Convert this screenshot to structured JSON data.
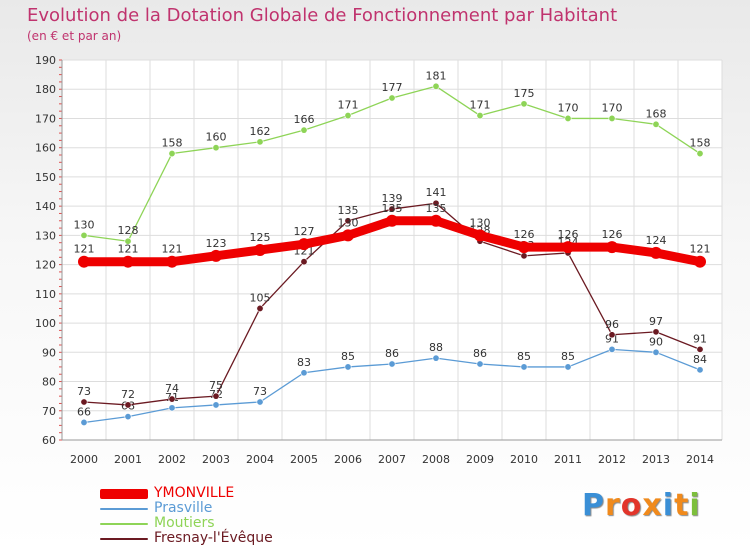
{
  "title": "Evolution de la Dotation Globale de Fonctionnement par Habitant",
  "subtitle": "(en € et par an)",
  "logo_text": "Proxiti",
  "chart_data": {
    "type": "line",
    "x": [
      "2000",
      "2001",
      "2002",
      "2003",
      "2004",
      "2005",
      "2006",
      "2007",
      "2008",
      "2009",
      "2010",
      "2011",
      "2012",
      "2013",
      "2014"
    ],
    "ylim": [
      60,
      190
    ],
    "yticks": [
      60,
      70,
      80,
      90,
      100,
      110,
      120,
      130,
      140,
      150,
      160,
      170,
      180,
      190
    ],
    "grid": true,
    "legend_position": "bottom-left",
    "series": [
      {
        "name": "YMONVILLE",
        "color": "#ee0000",
        "values": [
          121,
          121,
          121,
          123,
          125,
          127,
          130,
          135,
          135,
          130,
          126,
          126,
          126,
          124,
          121
        ]
      },
      {
        "name": "Prasville",
        "color": "#5b9bd5",
        "values": [
          66,
          68,
          71,
          72,
          73,
          83,
          85,
          86,
          88,
          86,
          85,
          85,
          91,
          90,
          84
        ]
      },
      {
        "name": "Moutiers",
        "color": "#8ed457",
        "values": [
          130,
          128,
          158,
          160,
          162,
          166,
          171,
          177,
          181,
          171,
          175,
          170,
          170,
          168,
          158
        ]
      },
      {
        "name": "Fresnay-l'Évêque",
        "color": "#6b1a22",
        "values": [
          73,
          72,
          74,
          75,
          105,
          121,
          135,
          139,
          141,
          128,
          123,
          124,
          96,
          97,
          91
        ]
      }
    ]
  }
}
